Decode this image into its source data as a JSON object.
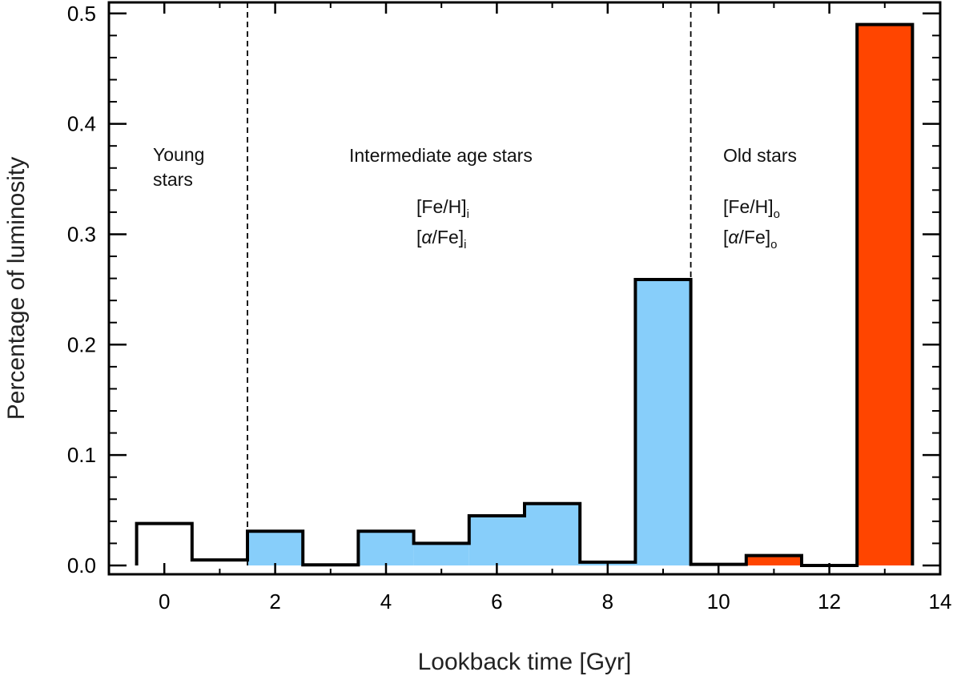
{
  "chart_data": {
    "type": "bar",
    "xlabel": "Lookback time [Gyr]",
    "ylabel": "Percentage of luminosity",
    "xlim": [
      -1,
      14
    ],
    "ylim": [
      -0.008,
      0.51
    ],
    "x_ticks": [
      "0",
      "2",
      "4",
      "6",
      "8",
      "10",
      "12",
      "14"
    ],
    "y_ticks": [
      "0.0",
      "0.1",
      "0.2",
      "0.3",
      "0.4",
      "0.5"
    ],
    "grid": false,
    "bin_width": 1,
    "bins": [
      {
        "x": 0,
        "value": 0.038,
        "group": "young"
      },
      {
        "x": 1,
        "value": 0.005,
        "group": "young"
      },
      {
        "x": 2,
        "value": 0.031,
        "group": "intermediate"
      },
      {
        "x": 3,
        "value": 0.0005,
        "group": "intermediate"
      },
      {
        "x": 4,
        "value": 0.031,
        "group": "intermediate"
      },
      {
        "x": 5,
        "value": 0.02,
        "group": "intermediate"
      },
      {
        "x": 6,
        "value": 0.045,
        "group": "intermediate"
      },
      {
        "x": 7,
        "value": 0.056,
        "group": "intermediate"
      },
      {
        "x": 8,
        "value": 0.003,
        "group": "intermediate"
      },
      {
        "x": 9,
        "value": 0.259,
        "group": "intermediate"
      },
      {
        "x": 10,
        "value": 0.001,
        "group": "old"
      },
      {
        "x": 11,
        "value": 0.009,
        "group": "old"
      },
      {
        "x": 12,
        "value": 0.0,
        "group": "old"
      },
      {
        "x": 13,
        "value": 0.49,
        "group": "old"
      }
    ],
    "dividers": [
      1.5,
      9.5
    ],
    "colors": {
      "young": "#ffffff",
      "intermediate": "#87cefa",
      "old": "#ff4500",
      "stroke": "#000000"
    },
    "annotations": {
      "young": [
        "Young",
        "stars"
      ],
      "intermediate": "Intermediate age stars",
      "old": "Old stars",
      "feh": "[Fe/H]",
      "afe_prefix": "[",
      "afe_alpha": "α",
      "afe_suffix": "/Fe]",
      "sub_i": "i",
      "sub_o": "o"
    }
  }
}
